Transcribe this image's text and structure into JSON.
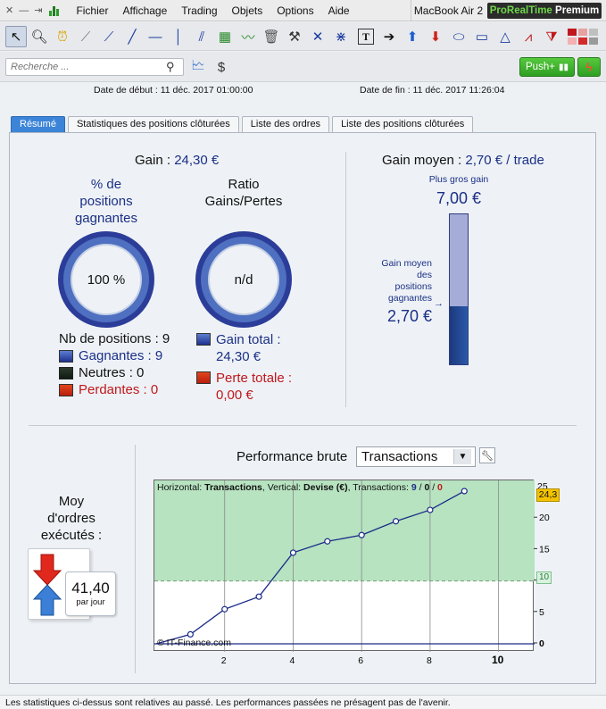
{
  "menubar": {
    "items": [
      "Fichier",
      "Affichage",
      "Trading",
      "Objets",
      "Options",
      "Aide"
    ],
    "device": "MacBook Air 2",
    "brand_green": "ProRealTime",
    "brand_white": "Premium"
  },
  "toolbar": {
    "icons": [
      "cursor-icon",
      "zoom-icon",
      "alarm-icon",
      "ruler-icon",
      "segment-icon",
      "line-icon",
      "horizontal-line-icon",
      "vertical-line-icon",
      "channel-icon",
      "regression-icon",
      "trend-icon",
      "trash-icon",
      "tools-icon",
      "fan-icon",
      "fibonacci-icon",
      "text-icon",
      "arrow-right-icon",
      "arrow-up-icon",
      "arrow-down-icon",
      "ellipse-icon",
      "rectangle-icon",
      "triangle-icon",
      "zigzag-icon",
      "pattern-icon",
      "colors-icon"
    ]
  },
  "searchrow": {
    "search_placeholder": "Recherche ...",
    "push_label": "Push+"
  },
  "dates": {
    "start": "Date de début :  11 déc. 2017 01:00:00",
    "end": "Date de fin :  11 déc. 2017 11:26:04"
  },
  "tabs": [
    "Résumé",
    "Statistiques des positions clôturées",
    "Liste des ordres",
    "Liste des positions clôturées"
  ],
  "summary": {
    "gain_label": "Gain :",
    "gain_value": "24,30 €",
    "pct_label_1": "% de",
    "pct_label_2": "positions",
    "pct_label_3": "gagnantes",
    "pct_value": "100 %",
    "ratio_label_1": "Ratio",
    "ratio_label_2": "Gains/Pertes",
    "ratio_value": "n/d",
    "nb_positions": "Nb de positions : 9",
    "gagnantes": "Gagnantes : 9",
    "neutres": "Neutres : 0",
    "perdantes": "Perdantes : 0",
    "gain_total_1": "Gain total :",
    "gain_total_2": "24,30 €",
    "perte_totale_1": "Perte totale :",
    "perte_totale_2": "0,00 €",
    "gain_moyen_label": "Gain moyen :",
    "gain_moyen_value": "2,70 € / trade",
    "plus_gros_gain_label": "Plus gros gain",
    "plus_gros_gain_value": "7,00 €",
    "gain_moyen_pos_1": "Gain moyen",
    "gain_moyen_pos_2": "des",
    "gain_moyen_pos_3": "positions",
    "gain_moyen_pos_4": "gagnantes",
    "gain_moyen_pos_value": "2,70 €",
    "bar_fill_fraction": 0.386,
    "moy_1": "Moy",
    "moy_2": "d'ordres",
    "moy_3": "exécutés :",
    "moy_value": "41,40",
    "moy_unit": "par jour"
  },
  "performance": {
    "label": "Performance brute",
    "dropdown_value": "Transactions",
    "chart_header_h": "Horizontal:",
    "chart_header_h_val": "Transactions",
    "chart_header_v": ", Vertical:",
    "chart_header_v_val": "Devise (€)",
    "chart_header_t": ", Transactions:",
    "tx_win": "9",
    "tx_sep1": " / ",
    "tx_neutral": "0",
    "tx_sep2": " / ",
    "tx_loss": "0",
    "copyright": "© IT-Finance.com",
    "badge_max": "24,3",
    "badge_mid": "10"
  },
  "chart_data": {
    "type": "line",
    "x": [
      0,
      1,
      2,
      3,
      4,
      5,
      6,
      7,
      8,
      9
    ],
    "y": [
      0,
      1.5,
      5.5,
      7.5,
      14.5,
      16.3,
      17.3,
      19.5,
      21.3,
      24.3
    ],
    "xlim": [
      0,
      11
    ],
    "ylim": [
      -1,
      26
    ],
    "xticks": [
      2,
      4,
      6,
      8,
      10
    ],
    "yticks": [
      0,
      5,
      10,
      15,
      20,
      25
    ],
    "ref_line": 10,
    "xlabel": "",
    "ylabel": "",
    "colors": {
      "line": "#1a2a88",
      "fill_above": "#b7e3c0",
      "zero_line": "#1a2a88"
    }
  },
  "footer": {
    "text": "Les statistiques ci-dessus sont relatives au passé. Les performances passées ne présagent pas de l'avenir."
  }
}
